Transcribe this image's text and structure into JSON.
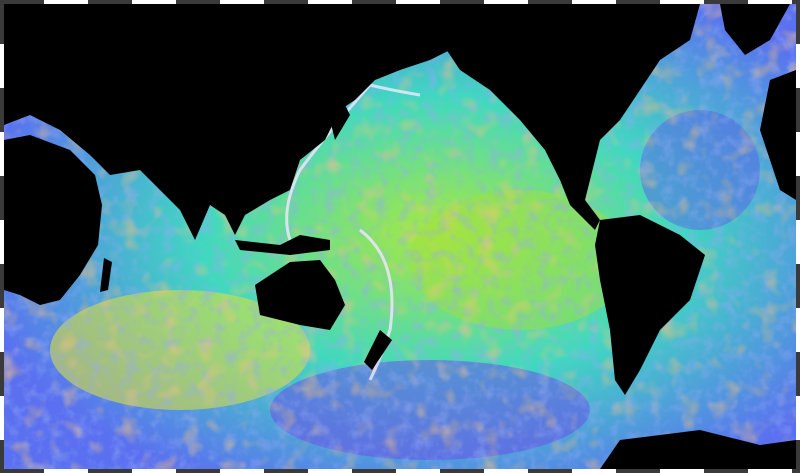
{
  "map": {
    "colors": {
      "land": "#000000",
      "ocean_base": "#3fd0c8",
      "ocean_deep": "#6a5cf0",
      "ocean_mid": "#8fe04a",
      "ridge": "#f08a3a",
      "trench": "#e8e0f0",
      "frame_dark": "#3a3a3a",
      "frame_light": "#ffffff"
    }
  }
}
